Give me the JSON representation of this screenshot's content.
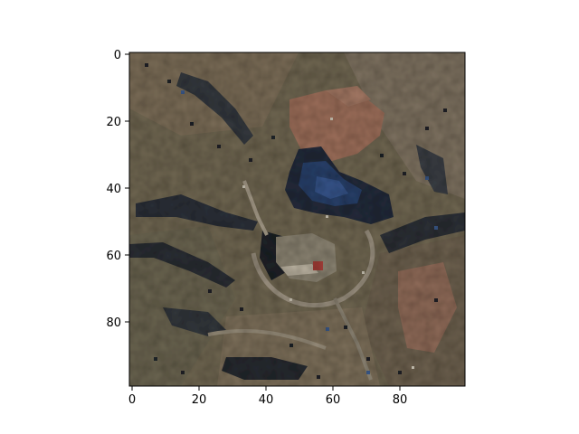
{
  "figure": {
    "x_ticks": [
      "0",
      "20",
      "40",
      "60",
      "80"
    ],
    "y_ticks": [
      "0",
      "20",
      "40",
      "60",
      "80"
    ]
  },
  "image": {
    "description_icon": "satellite-terrain-image",
    "palette": {
      "terrain_tan": "#7d6f58",
      "terrain_olive": "#6e6650",
      "soil_red": "#9c6e5a",
      "shadow_dark": "#262a30",
      "water_blue": "#28406a",
      "highlight": "#b9b1a0",
      "red_roof": "#a8403a"
    }
  }
}
